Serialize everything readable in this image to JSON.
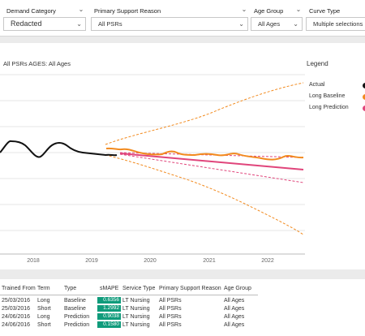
{
  "filters": [
    {
      "label": "Demand Category",
      "value": "Redacted"
    },
    {
      "label": "Primary Support Reason",
      "value": "All PSRs"
    },
    {
      "label": "Age Group",
      "value": "All Ages"
    },
    {
      "label": "Curve Type",
      "value": "Multiple selections"
    }
  ],
  "chart": {
    "subtitle": "All PSRs AGES: All Ages",
    "legend_title": "Legend",
    "legend": [
      {
        "label": "Actual",
        "color": "#111111"
      },
      {
        "label": "Long Baseline",
        "color": "#f28a1e"
      },
      {
        "label": "Long Prediction",
        "color": "#e0457b"
      }
    ]
  },
  "chart_data": {
    "type": "line",
    "x_ticks": [
      "2018",
      "2019",
      "2020",
      "2021",
      "2022"
    ],
    "series": [
      {
        "name": "Actual",
        "color": "#111111",
        "x": [
          "2017-01",
          "2017-04",
          "2017-07",
          "2017-10",
          "2018-01",
          "2018-04",
          "2018-07",
          "2018-10",
          "2019-01",
          "2019-04"
        ],
        "y": [
          0.52,
          0.62,
          0.61,
          0.44,
          0.58,
          0.56,
          0.48,
          0.46,
          0.45,
          0.43
        ]
      },
      {
        "name": "Long Baseline",
        "color": "#f28a1e",
        "x": [
          "2019-03",
          "2019-09",
          "2020-03",
          "2020-09",
          "2021-03",
          "2021-09",
          "2022-03",
          "2022-07"
        ],
        "y": [
          0.47,
          0.46,
          0.44,
          0.45,
          0.43,
          0.44,
          0.42,
          0.43
        ]
      },
      {
        "name": "Long Prediction",
        "color": "#e0457b",
        "x": [
          "2019-06",
          "2022-07"
        ],
        "y": [
          0.45,
          0.18
        ]
      }
    ]
  },
  "table": {
    "headers": [
      "Trained From",
      "Term",
      "Type",
      "sMAPE",
      "Service Type",
      "Primary Support Reason",
      "Age Group"
    ],
    "rows": [
      {
        "trained_from": "25/03/2016",
        "term": "Long",
        "type": "Baseline",
        "smape": "0.6356",
        "service_type": "LT Nursing",
        "psr": "All PSRs",
        "age_group": "All Ages"
      },
      {
        "trained_from": "25/03/2016",
        "term": "Short",
        "type": "Baseline",
        "smape": "1.2992",
        "service_type": "LT Nursing",
        "psr": "All PSRs",
        "age_group": "All Ages"
      },
      {
        "trained_from": "24/06/2016",
        "term": "Long",
        "type": "Prediction",
        "smape": "0.9038",
        "service_type": "LT Nursing",
        "psr": "All PSRs",
        "age_group": "All Ages"
      },
      {
        "trained_from": "24/06/2016",
        "term": "Short",
        "type": "Prediction",
        "smape": "0.1580",
        "service_type": "LT Nursing",
        "psr": "All PSRs",
        "age_group": "All Ages"
      }
    ]
  }
}
